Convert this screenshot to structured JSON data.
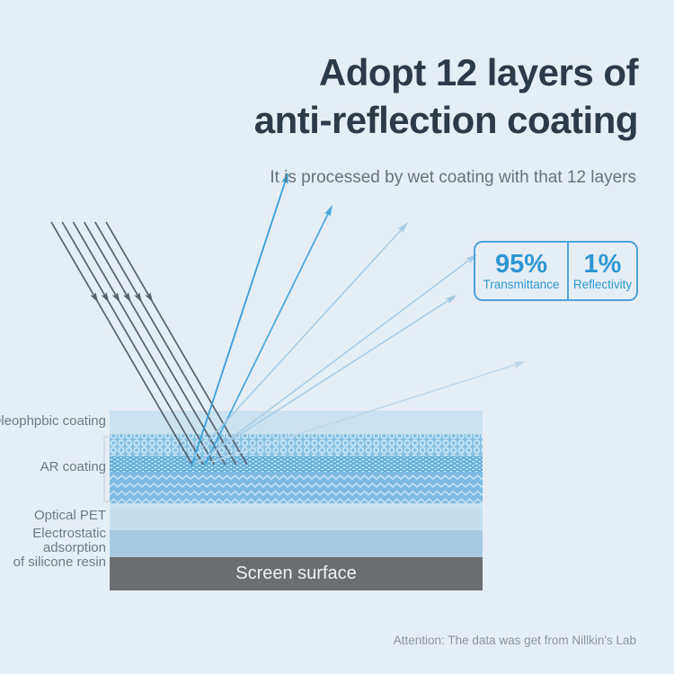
{
  "header": {
    "title_line1": "Adopt 12 layers of",
    "title_line2": "anti-reflection coating",
    "subtitle": "It is processed by wet coating with that 12 layers"
  },
  "stats": {
    "transmittance": {
      "value": "95%",
      "label": "Transmittance"
    },
    "reflectivity": {
      "value": "1%",
      "label": "Reflectivity"
    }
  },
  "diagram": {
    "labels": {
      "oleophobic": "Oleophpbic coating",
      "ar": "AR coating",
      "pet": "Optical PET",
      "electro_line1": "Electrostatic adsorption",
      "electro_line2": "of silicone resin"
    },
    "screen_surface_label": "Screen surface",
    "layers": [
      {
        "name": "oleophobic-coating",
        "label": "Oleophpbic coating",
        "color": "#cbe2f1"
      },
      {
        "name": "ar-coating-circles",
        "label": "AR coating",
        "color": "#8ac2e3"
      },
      {
        "name": "ar-coating-dots",
        "label": "AR coating",
        "color": "#60aeda"
      },
      {
        "name": "ar-coating-chevrons",
        "label": "AR coating",
        "color": "#7cbde1"
      },
      {
        "name": "optical-pet",
        "label": "Optical PET",
        "color": "#c6dfee"
      },
      {
        "name": "electrostatic-adsorption",
        "label": "Electrostatic adsorption of silicone resin",
        "color": "#a7cae2"
      },
      {
        "name": "screen-surface",
        "label": "Screen surface",
        "color": "#6b6d70"
      }
    ]
  },
  "footer": {
    "attention": "Attention: The data was get from Nillkin's Lab"
  },
  "palette": {
    "background": "#e6eef5",
    "title": "#2d3a49",
    "subtitle": "#68727c",
    "accent_blue": "#2e97d3",
    "box_border": "#4fa3d9",
    "incident_ray": "#57616c",
    "reflected_ray_bright": "#36a0dd",
    "reflected_ray_light": "#a4cbe7",
    "reflected_ray_faint": "#bad7ec",
    "bracket": "#c3d3de",
    "screen_surface_gray": "#6b6d70"
  }
}
